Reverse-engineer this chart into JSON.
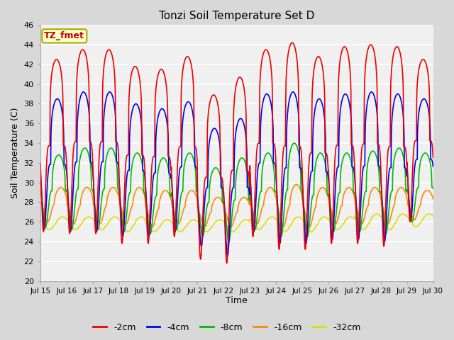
{
  "title": "Tonzi Soil Temperature Set D",
  "xlabel": "Time",
  "ylabel": "Soil Temperature (C)",
  "ylim": [
    20,
    46
  ],
  "xlim": [
    0,
    15
  ],
  "fig_bg": "#d8d8d8",
  "plot_bg": "#f0f0f0",
  "legend_label": "TZ_fmet",
  "legend_bg": "#ffffcc",
  "legend_border": "#aaaa00",
  "series_labels": [
    "-2cm",
    "-4cm",
    "-8cm",
    "-16cm",
    "-32cm"
  ],
  "series_colors": [
    "#ee0000",
    "#0000ee",
    "#00bb00",
    "#ff8800",
    "#dddd00"
  ],
  "tick_labels": [
    "Jul 15",
    "Jul 16",
    "Jul 17",
    "Jul 18",
    "Jul 19",
    "Jul 20",
    "Jul 21",
    "Jul 22",
    "Jul 23",
    "Jul 24",
    "Jul 25",
    "Jul 26",
    "Jul 27",
    "Jul 28",
    "Jul 29",
    "Jul 30"
  ],
  "tick_positions": [
    0,
    1,
    2,
    3,
    4,
    5,
    6,
    7,
    8,
    9,
    10,
    11,
    12,
    13,
    14,
    15
  ],
  "yticks": [
    20,
    22,
    24,
    26,
    28,
    30,
    32,
    34,
    36,
    38,
    40,
    42,
    44,
    46
  ],
  "peaks_2cm": [
    42.5,
    43.5,
    43.5,
    41.8,
    41.5,
    42.8,
    38.9,
    40.7,
    43.5,
    44.2,
    42.8,
    43.8,
    44.0,
    43.8,
    42.5
  ],
  "troughs_2cm": [
    25.0,
    24.8,
    24.8,
    23.8,
    23.8,
    24.5,
    22.2,
    21.8,
    24.5,
    23.2,
    23.2,
    23.8,
    23.8,
    23.5,
    26.0
  ],
  "peaks_4cm": [
    38.5,
    39.2,
    39.2,
    38.0,
    37.5,
    38.2,
    35.5,
    36.5,
    39.0,
    39.2,
    38.5,
    39.0,
    39.2,
    39.0,
    38.5
  ],
  "troughs_4cm": [
    25.2,
    25.0,
    25.0,
    24.5,
    24.5,
    25.0,
    23.5,
    22.5,
    25.0,
    23.8,
    23.8,
    24.2,
    24.2,
    24.0,
    26.2
  ],
  "peaks_8cm": [
    32.8,
    33.5,
    33.5,
    33.0,
    32.5,
    33.0,
    31.5,
    32.5,
    33.0,
    34.0,
    33.0,
    33.0,
    33.2,
    33.5,
    33.0
  ],
  "troughs_8cm": [
    25.5,
    25.2,
    25.2,
    25.0,
    24.8,
    25.2,
    24.5,
    24.0,
    25.2,
    24.5,
    24.5,
    25.0,
    25.0,
    24.8,
    26.0
  ],
  "peaks_16cm": [
    29.5,
    29.5,
    29.5,
    29.5,
    29.2,
    29.2,
    28.5,
    28.5,
    29.5,
    29.8,
    29.5,
    29.5,
    29.5,
    29.5,
    29.2
  ],
  "troughs_16cm": [
    26.0,
    25.8,
    25.8,
    25.8,
    25.5,
    25.8,
    25.5,
    25.5,
    25.8,
    25.5,
    25.5,
    25.8,
    25.8,
    25.8,
    26.2
  ],
  "peaks_32cm": [
    26.5,
    26.5,
    26.5,
    26.5,
    26.2,
    26.2,
    26.2,
    26.2,
    26.5,
    26.5,
    26.5,
    26.5,
    26.8,
    26.8,
    26.8
  ],
  "troughs_32cm": [
    25.2,
    25.2,
    25.2,
    25.0,
    25.0,
    25.0,
    25.0,
    25.0,
    25.2,
    25.0,
    25.0,
    25.2,
    25.2,
    25.2,
    25.5
  ]
}
